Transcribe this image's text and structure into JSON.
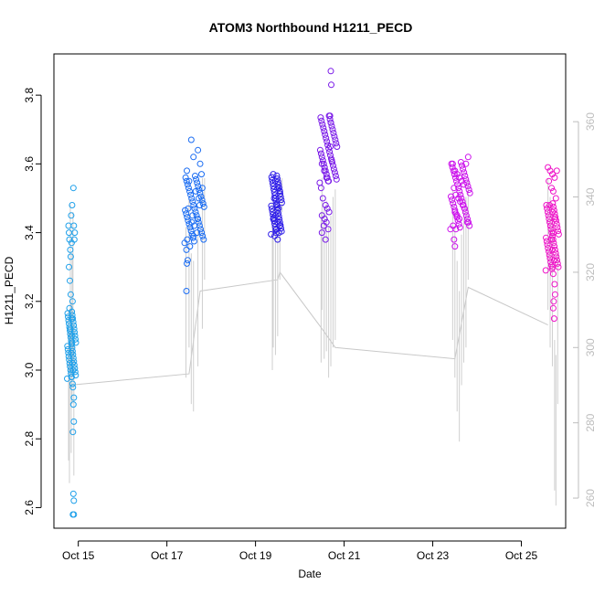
{
  "chart_data": {
    "type": "scatter",
    "title": "ATOM3 Northbound H1211_PECD",
    "xlabel": "Date",
    "ylabel": "H1211_PECD",
    "x_ticks": [
      "Oct 15",
      "Oct 17",
      "Oct 19",
      "Oct 21",
      "Oct 23",
      "Oct 25"
    ],
    "x_tick_values": [
      15,
      17,
      19,
      21,
      23,
      25
    ],
    "xlim": [
      14.45,
      26.0
    ],
    "ylim": [
      2.54,
      3.92
    ],
    "y_ticks": [
      2.6,
      2.8,
      3.0,
      3.2,
      3.4,
      3.6,
      3.8
    ],
    "y_right_lim": [
      252,
      378
    ],
    "y_right_ticks": [
      260,
      280,
      300,
      320,
      340,
      360
    ],
    "grid": false,
    "series": [
      {
        "colour": "#1ea0ea",
        "x_range": [
          14.75,
          14.95
        ],
        "points": [
          [
            14.78,
            3.42
          ],
          [
            14.8,
            3.38
          ],
          [
            14.82,
            3.35
          ],
          [
            14.79,
            3.3
          ],
          [
            14.81,
            3.26
          ],
          [
            14.83,
            3.22
          ],
          [
            14.8,
            3.18
          ],
          [
            14.85,
            3.15
          ],
          [
            14.82,
            3.12
          ],
          [
            14.86,
            3.08
          ],
          [
            14.84,
            3.05
          ],
          [
            14.87,
            3.02
          ],
          [
            14.85,
            2.98
          ],
          [
            14.88,
            2.95
          ],
          [
            14.9,
            2.92
          ],
          [
            14.89,
            2.9
          ],
          [
            14.9,
            2.85
          ],
          [
            14.88,
            2.82
          ],
          [
            14.89,
            2.64
          ],
          [
            14.9,
            2.62
          ],
          [
            14.88,
            2.58
          ],
          [
            14.9,
            2.58
          ],
          [
            14.89,
            3.53
          ],
          [
            14.86,
            3.48
          ],
          [
            14.84,
            3.45
          ],
          [
            14.9,
            3.42
          ],
          [
            14.92,
            3.4
          ],
          [
            14.85,
            3.37
          ],
          [
            14.83,
            3.33
          ],
          [
            14.87,
            3.2
          ],
          [
            14.86,
            3.1
          ],
          [
            14.88,
            3.0
          ],
          [
            14.87,
            2.96
          ],
          [
            14.91,
            3.38
          ],
          [
            14.79,
            3.4
          ]
        ],
        "line_points": [
          [
            14.78,
            270
          ],
          [
            14.8,
            264
          ],
          [
            14.82,
            298
          ],
          [
            14.84,
            272
          ],
          [
            14.86,
            285
          ],
          [
            14.88,
            296
          ],
          [
            14.9,
            266
          ]
        ]
      },
      {
        "colour": "#1a6cf2",
        "x_range": [
          17.4,
          17.85
        ],
        "points": [
          [
            17.55,
            3.67
          ],
          [
            17.6,
            3.62
          ],
          [
            17.7,
            3.64
          ],
          [
            17.75,
            3.6
          ],
          [
            17.45,
            3.58
          ],
          [
            17.5,
            3.55
          ],
          [
            17.65,
            3.52
          ],
          [
            17.72,
            3.5
          ],
          [
            17.48,
            3.47
          ],
          [
            17.58,
            3.45
          ],
          [
            17.62,
            3.42
          ],
          [
            17.68,
            3.4
          ],
          [
            17.46,
            3.38
          ],
          [
            17.52,
            3.36
          ],
          [
            17.44,
            3.35
          ],
          [
            17.47,
            3.32
          ],
          [
            17.45,
            3.31
          ],
          [
            17.44,
            3.23
          ],
          [
            17.78,
            3.57
          ],
          [
            17.8,
            3.53
          ],
          [
            17.74,
            3.48
          ],
          [
            17.7,
            3.44
          ],
          [
            17.56,
            3.43
          ],
          [
            17.6,
            3.39
          ]
        ],
        "line_points": [
          [
            17.43,
            292
          ],
          [
            17.5,
            300
          ],
          [
            17.55,
            285
          ],
          [
            17.6,
            283
          ],
          [
            17.7,
            295
          ],
          [
            17.8,
            305
          ],
          [
            17.85,
            318
          ]
        ]
      },
      {
        "colour": "#2f1ee8",
        "x_range": [
          19.35,
          19.6
        ],
        "points": [
          [
            19.4,
            3.57
          ],
          [
            19.45,
            3.55
          ],
          [
            19.5,
            3.53
          ],
          [
            19.55,
            3.52
          ],
          [
            19.42,
            3.5
          ],
          [
            19.48,
            3.48
          ],
          [
            19.52,
            3.47
          ],
          [
            19.45,
            3.45
          ],
          [
            19.5,
            3.43
          ],
          [
            19.55,
            3.42
          ],
          [
            19.4,
            3.44
          ],
          [
            19.47,
            3.41
          ],
          [
            19.53,
            3.4
          ],
          [
            19.43,
            3.39
          ],
          [
            19.5,
            3.38
          ]
        ],
        "line_points": [
          [
            19.38,
            294
          ],
          [
            19.4,
            300
          ],
          [
            19.45,
            298
          ],
          [
            19.5,
            303
          ],
          [
            19.55,
            318
          ],
          [
            19.6,
            336
          ]
        ]
      },
      {
        "colour": "#7a1ae8",
        "x_range": [
          20.45,
          20.85
        ],
        "points": [
          [
            20.7,
            3.87
          ],
          [
            20.71,
            3.83
          ],
          [
            20.68,
            3.74
          ],
          [
            20.7,
            3.72
          ],
          [
            20.69,
            3.65
          ],
          [
            20.72,
            3.61
          ],
          [
            20.5,
            3.6
          ],
          [
            20.55,
            3.58
          ],
          [
            20.6,
            3.56
          ],
          [
            20.65,
            3.55
          ],
          [
            20.48,
            3.53
          ],
          [
            20.52,
            3.5
          ],
          [
            20.58,
            3.48
          ],
          [
            20.62,
            3.47
          ],
          [
            20.66,
            3.46
          ],
          [
            20.5,
            3.45
          ],
          [
            20.56,
            3.44
          ],
          [
            20.6,
            3.43
          ],
          [
            20.54,
            3.42
          ],
          [
            20.64,
            3.41
          ],
          [
            20.5,
            3.4
          ],
          [
            20.58,
            3.38
          ]
        ],
        "line_points": [
          [
            20.48,
            296
          ],
          [
            20.5,
            310
          ],
          [
            20.55,
            297
          ],
          [
            20.6,
            299
          ],
          [
            20.65,
            292
          ],
          [
            20.7,
            295
          ],
          [
            20.75,
            300
          ],
          [
            20.8,
            302
          ]
        ]
      },
      {
        "colour": "#cc12ec",
        "x_range": [
          23.4,
          23.85
        ],
        "points": [
          [
            23.45,
            3.6
          ],
          [
            23.5,
            3.58
          ],
          [
            23.55,
            3.57
          ],
          [
            23.6,
            3.56
          ],
          [
            23.65,
            3.55
          ],
          [
            23.7,
            3.54
          ],
          [
            23.75,
            3.6
          ],
          [
            23.8,
            3.62
          ],
          [
            23.48,
            3.53
          ],
          [
            23.52,
            3.51
          ],
          [
            23.58,
            3.5
          ],
          [
            23.62,
            3.49
          ],
          [
            23.68,
            3.48
          ],
          [
            23.72,
            3.47
          ],
          [
            23.5,
            3.46
          ],
          [
            23.55,
            3.45
          ],
          [
            23.6,
            3.44
          ],
          [
            23.46,
            3.42
          ],
          [
            23.52,
            3.41
          ],
          [
            23.48,
            3.38
          ],
          [
            23.5,
            3.36
          ],
          [
            23.78,
            3.43
          ]
        ],
        "line_points": [
          [
            23.45,
            302
          ],
          [
            23.5,
            292
          ],
          [
            23.55,
            283
          ],
          [
            23.6,
            275
          ],
          [
            23.65,
            290
          ],
          [
            23.7,
            296
          ],
          [
            23.75,
            300
          ],
          [
            23.8,
            318
          ]
        ]
      },
      {
        "colour": "#ee14c8",
        "x_range": [
          25.55,
          25.85
        ],
        "points": [
          [
            25.6,
            3.59
          ],
          [
            25.65,
            3.58
          ],
          [
            25.7,
            3.57
          ],
          [
            25.75,
            3.56
          ],
          [
            25.8,
            3.58
          ],
          [
            25.62,
            3.55
          ],
          [
            25.68,
            3.53
          ],
          [
            25.72,
            3.52
          ],
          [
            25.78,
            3.5
          ],
          [
            25.64,
            3.48
          ],
          [
            25.7,
            3.46
          ],
          [
            25.76,
            3.44
          ],
          [
            25.66,
            3.42
          ],
          [
            25.72,
            3.4
          ],
          [
            25.68,
            3.38
          ],
          [
            25.7,
            3.35
          ],
          [
            25.74,
            3.32
          ],
          [
            25.72,
            3.28
          ],
          [
            25.75,
            3.25
          ],
          [
            25.73,
            3.2
          ],
          [
            25.72,
            3.18
          ],
          [
            25.74,
            3.15
          ],
          [
            25.76,
            3.22
          ],
          [
            25.7,
            3.3
          ]
        ],
        "line_points": [
          [
            25.6,
            310
          ],
          [
            25.65,
            300
          ],
          [
            25.7,
            295
          ],
          [
            25.75,
            262
          ],
          [
            25.78,
            258
          ],
          [
            25.82,
            285
          ]
        ]
      }
    ],
    "right_axis_line": [
      [
        14.8,
        290
      ],
      [
        17.5,
        293
      ],
      [
        17.75,
        315
      ],
      [
        19.5,
        318
      ],
      [
        19.55,
        320
      ],
      [
        20.5,
        305
      ],
      [
        20.8,
        300
      ],
      [
        23.5,
        297
      ],
      [
        23.8,
        316
      ],
      [
        25.6,
        306
      ]
    ]
  }
}
